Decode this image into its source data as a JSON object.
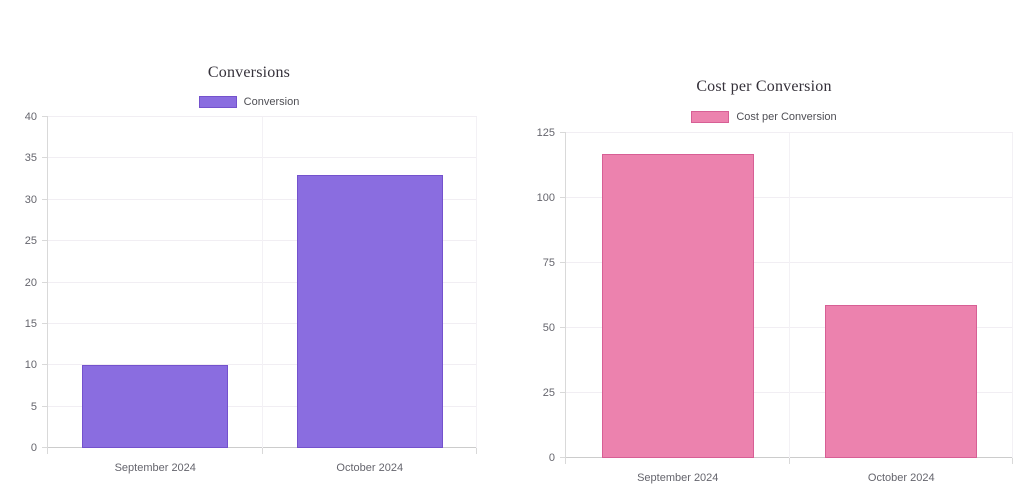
{
  "page": {
    "background": "#ffffff"
  },
  "chart_data": [
    {
      "type": "bar",
      "title": "Conversions",
      "legend": [
        {
          "label": "Conversion",
          "color": "#8a6de0",
          "border": "#7452cd"
        }
      ],
      "categories": [
        "September 2024",
        "October 2024"
      ],
      "values": [
        10,
        33
      ],
      "ylim": [
        0,
        40
      ],
      "ytick_step": 5,
      "grid": true,
      "legend_position": "top",
      "xlabel": "",
      "ylabel": ""
    },
    {
      "type": "bar",
      "title": "Cost per Conversion",
      "legend": [
        {
          "label": "Cost per Conversion",
          "color": "#ec82ae",
          "border": "#d75f95"
        }
      ],
      "categories": [
        "September 2024",
        "October 2024"
      ],
      "values": [
        117,
        59
      ],
      "ylim": [
        0,
        125
      ],
      "ytick_step": 25,
      "grid": true,
      "legend_position": "top",
      "xlabel": "",
      "ylabel": ""
    }
  ]
}
